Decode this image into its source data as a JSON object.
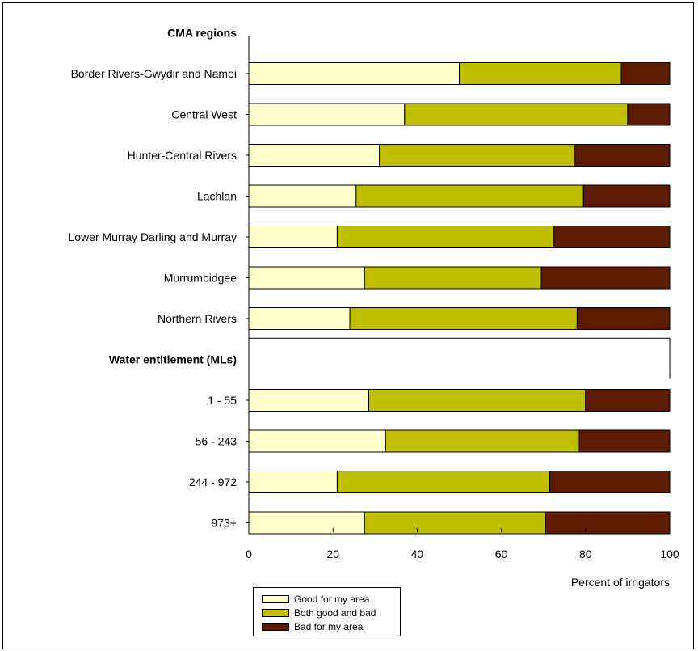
{
  "chart_data": {
    "type": "bar",
    "orientation": "horizontal",
    "stacked": true,
    "groups": [
      {
        "heading": "CMA regions",
        "categories": [
          "Border Rivers-Gwydir and Namoi",
          "Central West",
          "Hunter-Central Rivers",
          "Lachlan",
          "Lower Murray Darling and Murray",
          "Murrumbidgee",
          "Northern Rivers"
        ]
      },
      {
        "heading": "Water entitlement (MLs)",
        "categories": [
          "1 - 55",
          "56 - 243",
          "244 - 972",
          "973+"
        ]
      }
    ],
    "series": [
      {
        "name": "Good for my area",
        "color": "#ffffcc",
        "values": [
          50,
          37,
          31,
          25.5,
          21,
          27.5,
          24,
          28.5,
          32.5,
          21,
          27.5
        ]
      },
      {
        "name": "Both good and bad",
        "color": "#bfbf00",
        "values": [
          38.5,
          53,
          46.5,
          54,
          51.5,
          42,
          54,
          51.5,
          46,
          50.5,
          43
        ]
      },
      {
        "name": "Bad for my area",
        "color": "#5c1a00",
        "values": [
          11.5,
          10,
          22.5,
          20.5,
          27.5,
          30.5,
          22,
          20,
          21.5,
          28.5,
          29.5
        ]
      }
    ],
    "xlabel": "Percent of irrigators",
    "xlim": [
      0,
      100
    ],
    "xticks": [
      0,
      20,
      40,
      60,
      80,
      100
    ],
    "grid": false,
    "legend_position": "bottom-left"
  }
}
